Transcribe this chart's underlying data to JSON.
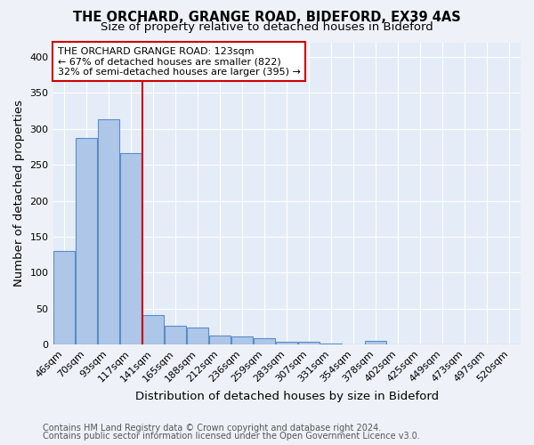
{
  "title1": "THE ORCHARD, GRANGE ROAD, BIDEFORD, EX39 4AS",
  "title2": "Size of property relative to detached houses in Bideford",
  "xlabel": "Distribution of detached houses by size in Bideford",
  "ylabel": "Number of detached properties",
  "footer1": "Contains HM Land Registry data © Crown copyright and database right 2024.",
  "footer2": "Contains public sector information licensed under the Open Government Licence v3.0.",
  "annotation_line1": "THE ORCHARD GRANGE ROAD: 123sqm",
  "annotation_line2": "← 67% of detached houses are smaller (822)",
  "annotation_line3": "32% of semi-detached houses are larger (395) →",
  "bar_labels": [
    "46sqm",
    "70sqm",
    "93sqm",
    "117sqm",
    "141sqm",
    "165sqm",
    "188sqm",
    "212sqm",
    "236sqm",
    "259sqm",
    "283sqm",
    "307sqm",
    "331sqm",
    "354sqm",
    "378sqm",
    "402sqm",
    "425sqm",
    "449sqm",
    "473sqm",
    "497sqm",
    "520sqm"
  ],
  "bar_heights": [
    130,
    287,
    313,
    266,
    41,
    26,
    24,
    13,
    11,
    9,
    4,
    4,
    2,
    0,
    5,
    0,
    0,
    0,
    0,
    0,
    0
  ],
  "bar_color": "#aec6e8",
  "bar_edge_color": "#5b8dc8",
  "red_line_x": 3.5,
  "red_line_color": "#cc0000",
  "ylim": [
    0,
    420
  ],
  "yticks": [
    0,
    50,
    100,
    150,
    200,
    250,
    300,
    350,
    400
  ],
  "background_color": "#eef2f8",
  "plot_bg_color": "#e4ecf7",
  "grid_color": "#ffffff",
  "annotation_box_color": "#ffffff",
  "annotation_box_edge": "#cc0000",
  "title_fontsize": 10.5,
  "subtitle_fontsize": 9.5,
  "axis_label_fontsize": 9.5,
  "tick_fontsize": 8,
  "annotation_fontsize": 8,
  "footer_fontsize": 7
}
